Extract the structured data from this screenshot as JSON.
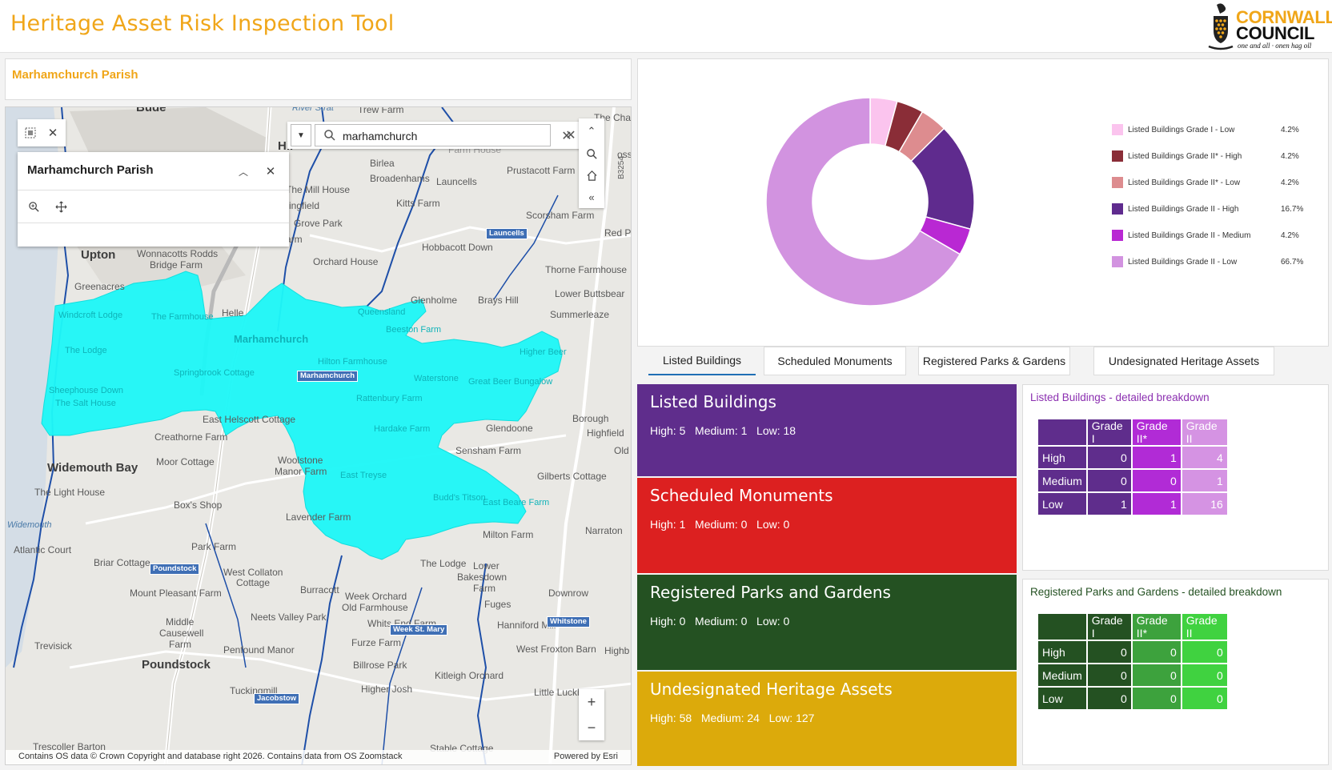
{
  "header": {
    "title": "Heritage Asset Risk Inspection Tool",
    "logo_line1": "CORNWALL",
    "logo_line2": "COUNCIL",
    "logo_tagline": "one and all · onen hag oll"
  },
  "parish_panel": {
    "title": "Marhamchurch Parish"
  },
  "map": {
    "search_value": "marhamchurch",
    "popup_title": "Marhamchurch Parish",
    "attribution_left": "Contains OS data © Crown Copyright and database right 2026. Contains data from OS Zoomstack",
    "attribution_right": "Powered by Esri",
    "highlight_color": "#1ef7f7",
    "labels": [
      {
        "t": "Bude",
        "k": "big"
      },
      {
        "t": "River Strat",
        "k": "water"
      },
      {
        "t": "Trew Farm"
      },
      {
        "t": "The Cha"
      },
      {
        "t": "Hil"
      },
      {
        "t": "Farm House"
      },
      {
        "t": "oss"
      },
      {
        "t": "Birlea"
      },
      {
        "t": "Broadenhams"
      },
      {
        "t": "Launcells"
      },
      {
        "t": "Prustacott Farm"
      },
      {
        "t": "The Mill House"
      },
      {
        "t": "Kitts Farm"
      },
      {
        "t": "ringfield"
      },
      {
        "t": "Scorsham Farm"
      },
      {
        "t": "Grove Park"
      },
      {
        "t": "Atlantic Farm"
      },
      {
        "t": "Red P"
      },
      {
        "t": "Upton",
        "k": "big"
      },
      {
        "t": "Wonnacotts Rodds"
      },
      {
        "t": "Bridge Farm"
      },
      {
        "t": "Orchard House"
      },
      {
        "t": "Hobbacott Down"
      },
      {
        "t": "Thorne Farmhouse"
      },
      {
        "t": "Greenacres"
      },
      {
        "t": "Glenholme"
      },
      {
        "t": "Brays Hill"
      },
      {
        "t": "Lower Buttsbear"
      },
      {
        "t": "Helle"
      },
      {
        "t": "Summerleaze"
      },
      {
        "t": "Borough"
      },
      {
        "t": "Glendoone"
      },
      {
        "t": "Highfield"
      },
      {
        "t": "Creathorne Farm"
      },
      {
        "t": "Old"
      },
      {
        "t": "East Helscott Cottage"
      },
      {
        "t": "Sensham Farm"
      },
      {
        "t": "Widemouth Bay",
        "k": "big"
      },
      {
        "t": "Moor Cottage"
      },
      {
        "t": "Woolstone"
      },
      {
        "t": "Manor Farm"
      },
      {
        "t": "Gilberts Cottage"
      },
      {
        "t": "The Light House"
      },
      {
        "t": "Box's Shop"
      },
      {
        "t": "Lavender Farm"
      },
      {
        "t": "Widemouth",
        "k": "water"
      },
      {
        "t": "Atlantic Court"
      },
      {
        "t": "Park Farm"
      },
      {
        "t": "Milton Farm"
      },
      {
        "t": "Narraton"
      },
      {
        "t": "Briar Cottage"
      },
      {
        "t": "West Collaton"
      },
      {
        "t": "Cottage"
      },
      {
        "t": "The Lodge"
      },
      {
        "t": "Lower"
      },
      {
        "t": "Bakesdown"
      },
      {
        "t": "Farm"
      },
      {
        "t": "Mount Pleasant Farm"
      },
      {
        "t": "Burracott"
      },
      {
        "t": "Week Orchard"
      },
      {
        "t": "Old Farmhouse"
      },
      {
        "t": "Downrow"
      },
      {
        "t": "Middle"
      },
      {
        "t": "Causewell"
      },
      {
        "t": "Farm"
      },
      {
        "t": "Neets Valley Park"
      },
      {
        "t": "Whits End Farm"
      },
      {
        "t": "Fuges"
      },
      {
        "t": "Hanniford Mill"
      },
      {
        "t": "Trevisick"
      },
      {
        "t": "Penfound Manor"
      },
      {
        "t": "Furze Farm"
      },
      {
        "t": "West Froxton Barn"
      },
      {
        "t": "Highb"
      },
      {
        "t": "Poundstock",
        "k": "big"
      },
      {
        "t": "Billrose Park"
      },
      {
        "t": "Kitleigh Orchard"
      },
      {
        "t": "Tuckingmill"
      },
      {
        "t": "Higher Josh"
      },
      {
        "t": "Little Luckham"
      },
      {
        "t": "Trescoller Barton"
      },
      {
        "t": "Stable Cottage"
      },
      {
        "t": "Marhamchurch",
        "k": "onpoly"
      },
      {
        "t": "Windcroft Lodge",
        "k": "onpoly"
      },
      {
        "t": "The Farmhouse",
        "k": "onpoly"
      },
      {
        "t": "The Lodge",
        "k": "onpoly"
      },
      {
        "t": "Springbrook Cottage",
        "k": "onpoly"
      },
      {
        "t": "Sheephouse Down",
        "k": "onpoly"
      },
      {
        "t": "The Salt House",
        "k": "onpoly"
      },
      {
        "t": "Queensland",
        "k": "onpoly"
      },
      {
        "t": "Beeston Farm",
        "k": "onpoly"
      },
      {
        "t": "Hilton Farmhouse",
        "k": "onpoly"
      },
      {
        "t": "Waterstone",
        "k": "onpoly"
      },
      {
        "t": "Great Beer Bungalow",
        "k": "onpoly"
      },
      {
        "t": "Higher Beer",
        "k": "onpoly"
      },
      {
        "t": "Rattenbury Farm",
        "k": "onpoly"
      },
      {
        "t": "Hardake Farm",
        "k": "onpoly"
      },
      {
        "t": "East Treyse",
        "k": "onpoly"
      },
      {
        "t": "Budd's Titson",
        "k": "onpoly"
      },
      {
        "t": "East Beare Farm",
        "k": "onpoly"
      }
    ],
    "badges": [
      "Marhamchurch",
      "Launcells",
      "Poundstock",
      "Week St. Mary",
      "Whitstone",
      "Jacobstow"
    ],
    "road_label": "B3254"
  },
  "chart_data": {
    "type": "pie",
    "donut": true,
    "categories": [
      "Listed Buildings Grade I - Low",
      "Listed Buildings Grade II* - High",
      "Listed Buildings Grade II* - Low",
      "Listed Buildings Grade II - High",
      "Listed Buildings Grade II - Medium",
      "Listed Buildings Grade II - Low"
    ],
    "values": [
      4.2,
      4.2,
      4.2,
      16.7,
      4.2,
      66.7
    ],
    "value_labels": [
      "4.2%",
      "4.2%",
      "4.2%",
      "16.7%",
      "4.2%",
      "66.7%"
    ],
    "colors": [
      "#fbc4ee",
      "#8a2d37",
      "#dd8c8f",
      "#5f2b8e",
      "#b928d3",
      "#d293e0"
    ],
    "legend_position": "right"
  },
  "tabs": [
    {
      "label": "Listed Buildings",
      "active": true
    },
    {
      "label": "Scheduled Monuments"
    },
    {
      "label": "Registered Parks & Gardens"
    },
    {
      "label": "Undesignated Heritage Assets"
    }
  ],
  "categories": [
    {
      "title": "Listed Buildings",
      "stats": "High: 5   Medium: 1   Low: 18",
      "color": "#5f2d8c"
    },
    {
      "title": "Scheduled Monuments",
      "stats": "High: 1   Medium: 0   Low: 0",
      "color": "#dc2020"
    },
    {
      "title": "Registered Parks and Gardens",
      "stats": "High: 0   Medium: 0   Low: 0",
      "color": "#245122"
    },
    {
      "title": "Undesignated Heritage Assets",
      "stats": "High: 58   Medium: 24   Low: 127",
      "color": "#dcaa0b"
    }
  ],
  "breakdown_listed": {
    "title": "Listed Buildings - detailed breakdown",
    "title_color": "#8b2fb0",
    "headers": [
      "",
      "Grade I",
      "Grade II*",
      "Grade II"
    ],
    "rows": [
      {
        "label": "High",
        "values": [
          0,
          1,
          4
        ]
      },
      {
        "label": "Medium",
        "values": [
          0,
          0,
          1
        ]
      },
      {
        "label": "Low",
        "values": [
          1,
          1,
          16
        ]
      }
    ],
    "colors": [
      "#5f2d8c",
      "#b12bd6",
      "#d593e3"
    ]
  },
  "breakdown_parks": {
    "title": "Registered Parks and Gardens - detailed breakdown",
    "title_color": "#245122",
    "headers": [
      "",
      "Grade I",
      "Grade II*",
      "Grade II"
    ],
    "rows": [
      {
        "label": "High",
        "values": [
          0,
          0,
          0
        ]
      },
      {
        "label": "Medium",
        "values": [
          0,
          0,
          0
        ]
      },
      {
        "label": "Low",
        "values": [
          0,
          0,
          0
        ]
      }
    ],
    "colors": [
      "#245122",
      "#3da23d",
      "#40d240"
    ]
  }
}
